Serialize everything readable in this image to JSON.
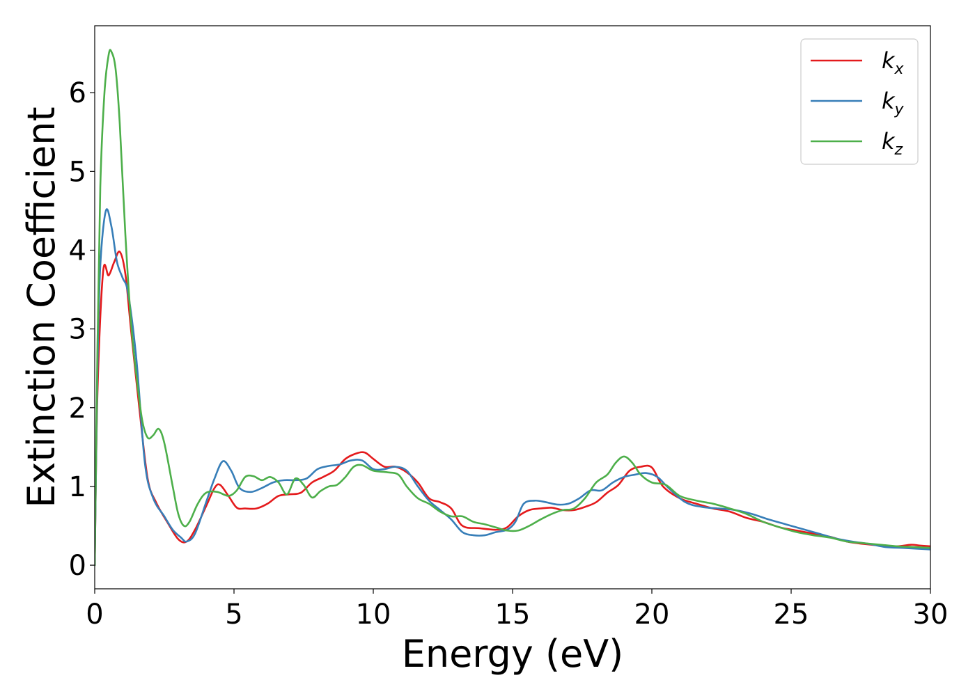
{
  "chart_data": {
    "type": "line",
    "xlabel": "Energy (eV)",
    "ylabel": "Extinction Coefficient",
    "xlim": [
      0,
      30
    ],
    "ylim": [
      -0.3,
      6.85
    ],
    "xticks": [
      0,
      5,
      10,
      15,
      20,
      25,
      30
    ],
    "yticks": [
      0,
      1,
      2,
      3,
      4,
      5,
      6
    ],
    "grid": false,
    "legend_position": "top-right",
    "series": [
      {
        "name": "k_x",
        "base": "k",
        "sub": "x",
        "color": "#e41a1c",
        "x": [
          0,
          0.1,
          0.3,
          0.5,
          0.7,
          0.9,
          1.1,
          1.3,
          1.6,
          1.9,
          2.2,
          2.6,
          3.0,
          3.3,
          3.6,
          4.0,
          4.3,
          4.5,
          4.8,
          5.1,
          5.4,
          5.8,
          6.2,
          6.6,
          7.0,
          7.4,
          7.8,
          8.2,
          8.6,
          9.0,
          9.4,
          9.7,
          10.0,
          10.4,
          10.8,
          11.2,
          11.6,
          12.0,
          12.4,
          12.8,
          13.2,
          13.8,
          14.4,
          14.8,
          15.2,
          15.6,
          16.0,
          16.4,
          16.8,
          17.2,
          17.6,
          18.0,
          18.4,
          18.8,
          19.2,
          19.6,
          20.0,
          20.4,
          21.0,
          21.6,
          22.2,
          22.8,
          23.4,
          24.0,
          24.6,
          25.2,
          25.8,
          26.4,
          27.0,
          27.6,
          28.2,
          28.8,
          29.3,
          29.6,
          30.0
        ],
        "y": [
          0,
          2.2,
          3.72,
          3.68,
          3.85,
          3.98,
          3.7,
          3.0,
          2.0,
          1.1,
          0.8,
          0.55,
          0.33,
          0.3,
          0.45,
          0.75,
          0.98,
          1.02,
          0.88,
          0.73,
          0.72,
          0.72,
          0.78,
          0.88,
          0.9,
          0.92,
          1.05,
          1.12,
          1.2,
          1.35,
          1.42,
          1.43,
          1.35,
          1.25,
          1.25,
          1.18,
          1.05,
          0.85,
          0.8,
          0.72,
          0.5,
          0.47,
          0.45,
          0.48,
          0.62,
          0.7,
          0.72,
          0.73,
          0.7,
          0.7,
          0.74,
          0.8,
          0.92,
          1.02,
          1.2,
          1.25,
          1.24,
          1.0,
          0.85,
          0.78,
          0.72,
          0.68,
          0.6,
          0.55,
          0.48,
          0.44,
          0.4,
          0.36,
          0.3,
          0.27,
          0.25,
          0.24,
          0.26,
          0.25,
          0.24
        ]
      },
      {
        "name": "k_y",
        "base": "k",
        "sub": "y",
        "color": "#377eb8",
        "x": [
          0,
          0.1,
          0.2,
          0.4,
          0.6,
          0.8,
          1.0,
          1.2,
          1.5,
          1.8,
          2.1,
          2.5,
          2.8,
          3.1,
          3.3,
          3.6,
          4.0,
          4.3,
          4.6,
          4.9,
          5.2,
          5.6,
          6.0,
          6.4,
          6.8,
          7.2,
          7.6,
          8.0,
          8.4,
          8.8,
          9.2,
          9.6,
          10.0,
          10.4,
          10.8,
          11.2,
          11.6,
          12.0,
          12.4,
          12.8,
          13.2,
          13.6,
          14.0,
          14.4,
          14.8,
          15.1,
          15.4,
          15.8,
          16.2,
          16.6,
          17.0,
          17.4,
          17.8,
          18.2,
          18.6,
          19.0,
          19.4,
          19.8,
          20.2,
          20.6,
          21.2,
          21.8,
          22.4,
          23.0,
          23.6,
          24.2,
          24.8,
          25.4,
          26.0,
          26.6,
          27.2,
          27.8,
          28.4,
          29.0,
          29.5,
          30.0
        ],
        "y": [
          0,
          2.5,
          3.8,
          4.5,
          4.3,
          3.85,
          3.65,
          3.45,
          2.6,
          1.3,
          0.85,
          0.62,
          0.45,
          0.35,
          0.3,
          0.4,
          0.8,
          1.1,
          1.32,
          1.2,
          0.98,
          0.93,
          0.98,
          1.05,
          1.08,
          1.08,
          1.1,
          1.22,
          1.26,
          1.28,
          1.33,
          1.33,
          1.22,
          1.22,
          1.25,
          1.2,
          1.0,
          0.82,
          0.7,
          0.58,
          0.42,
          0.38,
          0.38,
          0.42,
          0.45,
          0.55,
          0.78,
          0.82,
          0.8,
          0.77,
          0.78,
          0.85,
          0.95,
          0.95,
          1.05,
          1.12,
          1.15,
          1.17,
          1.12,
          0.98,
          0.8,
          0.74,
          0.72,
          0.7,
          0.65,
          0.58,
          0.52,
          0.46,
          0.4,
          0.34,
          0.3,
          0.27,
          0.23,
          0.22,
          0.21,
          0.2
        ]
      },
      {
        "name": "k_z",
        "base": "k",
        "sub": "z",
        "color": "#4daf4a",
        "x": [
          0,
          0.1,
          0.2,
          0.35,
          0.5,
          0.6,
          0.75,
          0.9,
          1.1,
          1.3,
          1.5,
          1.7,
          1.9,
          2.1,
          2.3,
          2.5,
          2.8,
          3.0,
          3.2,
          3.4,
          3.7,
          4.0,
          4.4,
          4.8,
          5.1,
          5.4,
          5.7,
          6.0,
          6.3,
          6.6,
          6.9,
          7.2,
          7.5,
          7.8,
          8.1,
          8.4,
          8.7,
          9.0,
          9.3,
          9.6,
          10.0,
          10.5,
          10.9,
          11.2,
          11.6,
          12.0,
          12.4,
          12.8,
          13.2,
          13.6,
          14.0,
          14.4,
          14.8,
          15.2,
          15.6,
          16.0,
          16.4,
          16.8,
          17.2,
          17.6,
          18.0,
          18.4,
          18.7,
          19.0,
          19.3,
          19.6,
          20.0,
          20.5,
          21.0,
          21.6,
          22.2,
          22.8,
          23.4,
          24.0,
          24.6,
          25.2,
          25.8,
          26.4,
          27.0,
          27.6,
          28.2,
          28.8,
          29.4,
          30.0
        ],
        "y": [
          0,
          2.8,
          4.8,
          6.0,
          6.48,
          6.52,
          6.3,
          5.6,
          4.2,
          3.1,
          2.4,
          1.85,
          1.62,
          1.65,
          1.73,
          1.55,
          1.0,
          0.65,
          0.5,
          0.55,
          0.78,
          0.92,
          0.93,
          0.88,
          0.95,
          1.12,
          1.13,
          1.08,
          1.12,
          1.05,
          0.9,
          1.1,
          1.02,
          0.86,
          0.94,
          1.0,
          1.02,
          1.12,
          1.25,
          1.27,
          1.2,
          1.18,
          1.15,
          1.0,
          0.85,
          0.78,
          0.68,
          0.62,
          0.62,
          0.55,
          0.52,
          0.48,
          0.44,
          0.44,
          0.5,
          0.58,
          0.65,
          0.7,
          0.72,
          0.85,
          1.05,
          1.15,
          1.3,
          1.38,
          1.3,
          1.15,
          1.05,
          1.02,
          0.88,
          0.82,
          0.78,
          0.72,
          0.65,
          0.55,
          0.48,
          0.42,
          0.38,
          0.35,
          0.3,
          0.28,
          0.26,
          0.24,
          0.23,
          0.22
        ]
      }
    ]
  }
}
